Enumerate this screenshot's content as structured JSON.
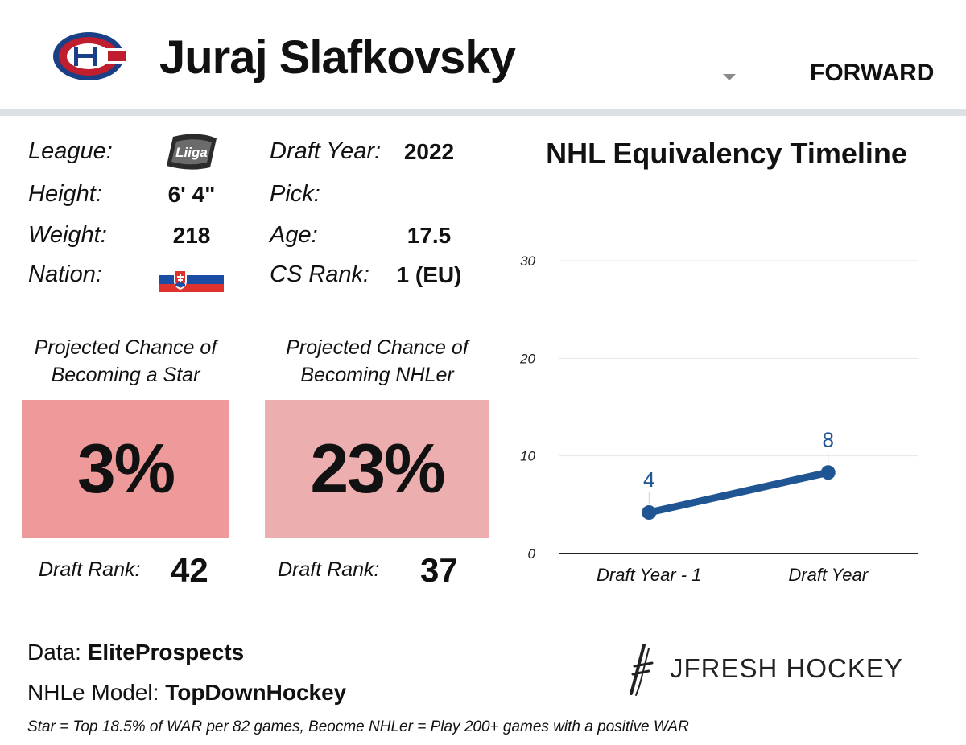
{
  "header": {
    "player_name": "Juraj Slafkovsky",
    "position": "FORWARD",
    "team_logo_icon": "canadiens-logo-icon"
  },
  "info": {
    "league_label": "League:",
    "league_logo_text": "Liiga",
    "height_label": "Height:",
    "height_value": "6' 4\"",
    "weight_label": "Weight:",
    "weight_value": "218",
    "nation_label": "Nation:",
    "nation_flag_icon": "slovakia-flag-icon",
    "draft_year_label": "Draft Year:",
    "draft_year_value": "2022",
    "pick_label": "Pick:",
    "pick_value": "",
    "age_label": "Age:",
    "age_value": "17.5",
    "cs_rank_label": "CS Rank:",
    "cs_rank_value": "1 (EU)"
  },
  "projections": [
    {
      "title_line1": "Projected Chance of",
      "title_line2": "Becoming a Star",
      "value": "3%",
      "rank_label": "Draft Rank:",
      "rank_value": "42",
      "color": "#ef9a9a"
    },
    {
      "title_line1": "Projected Chance of",
      "title_line2": "Becoming NHLer",
      "value": "23%",
      "rank_label": "Draft Rank:",
      "rank_value": "37",
      "color": "#ecaeae"
    }
  ],
  "chart_data": {
    "type": "line",
    "title": "NHL Equivalency Timeline",
    "categories": [
      "Draft Year - 1",
      "Draft Year"
    ],
    "series": [
      {
        "values": [
          4.2,
          8.3
        ],
        "labels": [
          "4",
          "8"
        ],
        "color": "#1f5593"
      }
    ],
    "yticks": [
      "0",
      "10",
      "20",
      "30"
    ],
    "ylim": [
      0,
      30
    ],
    "grid": true
  },
  "footer": {
    "data_prefix": "Data: ",
    "data_source": "EliteProspects",
    "model_prefix": "NHLe Model: ",
    "model_source": "TopDownHockey",
    "footnote": "Star = Top 18.5% of WAR per 82 games, Beocme NHLer = Play 200+ games with a positive WAR",
    "brand": "JFRESH HOCKEY",
    "brand_icon": "jfresh-logo-icon"
  }
}
